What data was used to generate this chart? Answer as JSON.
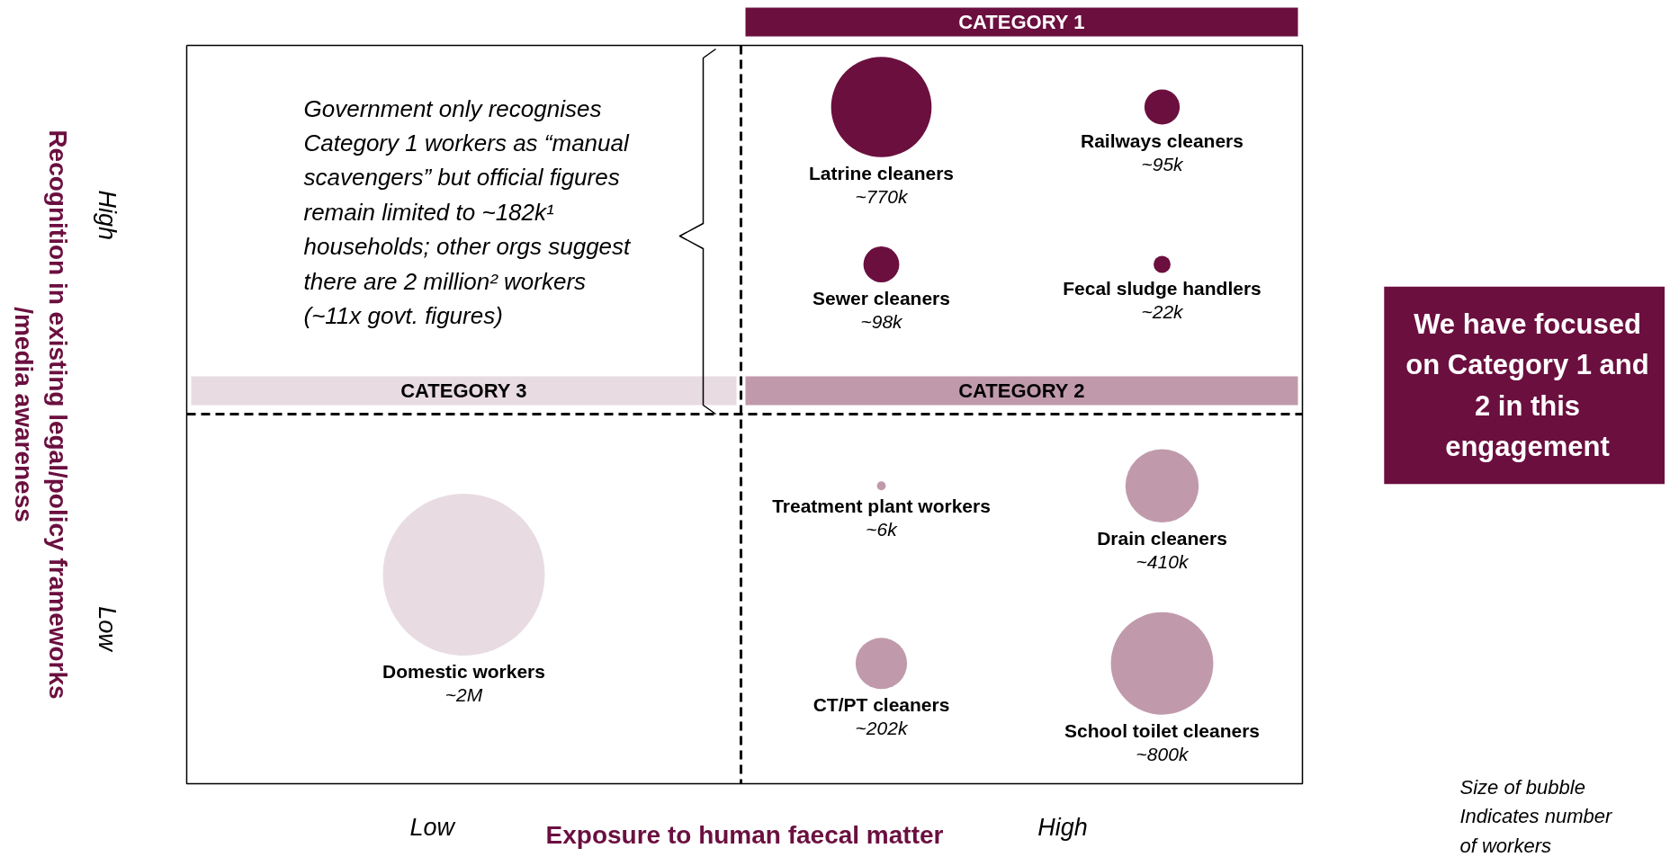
{
  "chart_data": {
    "type": "other",
    "xlabel": "Exposure to human faecal matter",
    "ylabel": "Recognition in existing legal/policy frameworks\n/media awareness",
    "categories": [
      "Latrine cleaners",
      "Railways cleaners",
      "Sewer cleaners",
      "Fecal sludge handlers",
      "Treatment plant workers",
      "Drain cleaners",
      "CT/PT cleaners",
      "School toilet cleaners",
      "Domestic workers"
    ],
    "series": [
      {
        "color": "#6b0f3f",
        "values": [
          770000,
          95000,
          98000,
          22000,
          null,
          null,
          null,
          null,
          null
        ],
        "value_labels": [
          "~770k",
          "~95k",
          "~98k",
          "~22k",
          null,
          null,
          null,
          null,
          null
        ]
      },
      {
        "color": "#c09aab",
        "values": [
          null,
          null,
          null,
          null,
          6000,
          410000,
          202000,
          800000,
          null
        ],
        "value_labels": [
          null,
          null,
          null,
          null,
          "~6k",
          "~410k",
          "~202k",
          "~800k",
          null
        ]
      },
      {
        "color": "#e8dce2",
        "values": [
          null,
          null,
          null,
          null,
          null,
          null,
          null,
          null,
          2000000
        ],
        "value_labels": [
          null,
          null,
          null,
          null,
          null,
          null,
          null,
          null,
          "~2M"
        ]
      }
    ],
    "annotations": [
      "Government only recognises\nCategory 1 workers as “manual\nscavengers” but official figures\nremain limited to ~182k¹\nhouseholds; other orgs suggest\nthere are 2 million² workers\n(~11x govt. figures)",
      "We have focused\non Category 1 and\n2 in this\nengagement",
      "Size of bubble\nIndicates number\nof workers",
      "Low",
      "High",
      "Low",
      "High",
      "CATEGORY 1",
      "CATEGORY 2",
      "CATEGORY 3"
    ]
  }
}
